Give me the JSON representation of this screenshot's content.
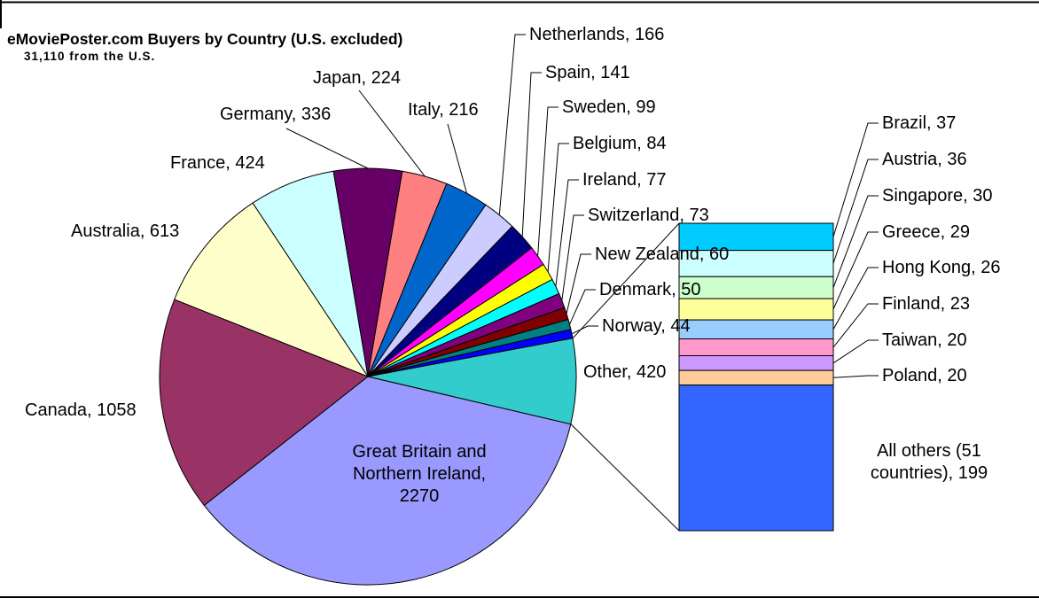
{
  "chart_data": {
    "type": "pie",
    "variant": "bar-of-pie",
    "title": "eMoviePoster.com Buyers by Country (U.S. excluded)",
    "subtitle": "31,110 from the U.S.",
    "legend": "none",
    "grid": "off",
    "pie_total": 6355,
    "label_separator": ", ",
    "pie_slices": [
      {
        "name": "Great Britain and Northern Ireland",
        "value": 2270,
        "color": "#9999FF",
        "label_lines": [
          "Great Britain and",
          "Northern Ireland,",
          "2270"
        ]
      },
      {
        "name": "Canada",
        "value": 1058,
        "color": "#993366"
      },
      {
        "name": "Australia",
        "value": 613,
        "color": "#FFFFCC"
      },
      {
        "name": "France",
        "value": 424,
        "color": "#CCFFFF"
      },
      {
        "name": "Germany",
        "value": 336,
        "color": "#660066"
      },
      {
        "name": "Japan",
        "value": 224,
        "color": "#FF8080"
      },
      {
        "name": "Italy",
        "value": 216,
        "color": "#0066CC"
      },
      {
        "name": "Netherlands",
        "value": 166,
        "color": "#CCCCFF"
      },
      {
        "name": "Spain",
        "value": 141,
        "color": "#000080"
      },
      {
        "name": "Sweden",
        "value": 99,
        "color": "#FF00FF"
      },
      {
        "name": "Belgium",
        "value": 84,
        "color": "#FFFF00"
      },
      {
        "name": "Ireland",
        "value": 77,
        "color": "#00FFFF"
      },
      {
        "name": "Switzerland",
        "value": 73,
        "color": "#800080"
      },
      {
        "name": "New Zealand",
        "value": 60,
        "color": "#800000"
      },
      {
        "name": "Denmark",
        "value": 50,
        "color": "#008080"
      },
      {
        "name": "Norway",
        "value": 44,
        "color": "#0000FF"
      },
      {
        "name": "Other",
        "value": 420,
        "color": "#33CCCC"
      }
    ],
    "bar_total": 420,
    "bar_segments": [
      {
        "name": "Brazil",
        "value": 37,
        "color": "#00CCFF"
      },
      {
        "name": "Austria",
        "value": 36,
        "color": "#CCFFFF"
      },
      {
        "name": "Singapore",
        "value": 30,
        "color": "#CCFFCC"
      },
      {
        "name": "Greece",
        "value": 29,
        "color": "#FFFF99"
      },
      {
        "name": "Hong Kong",
        "value": 26,
        "color": "#99CCFF"
      },
      {
        "name": "Finland",
        "value": 23,
        "color": "#FF99CC"
      },
      {
        "name": "Taiwan",
        "value": 20,
        "color": "#CC99FF"
      },
      {
        "name": "Poland",
        "value": 20,
        "color": "#FFCC99"
      },
      {
        "name": "All others (51 countries)",
        "value": 199,
        "color": "#3366FF",
        "label_lines": [
          "All others (51",
          "countries), 199"
        ]
      }
    ]
  }
}
